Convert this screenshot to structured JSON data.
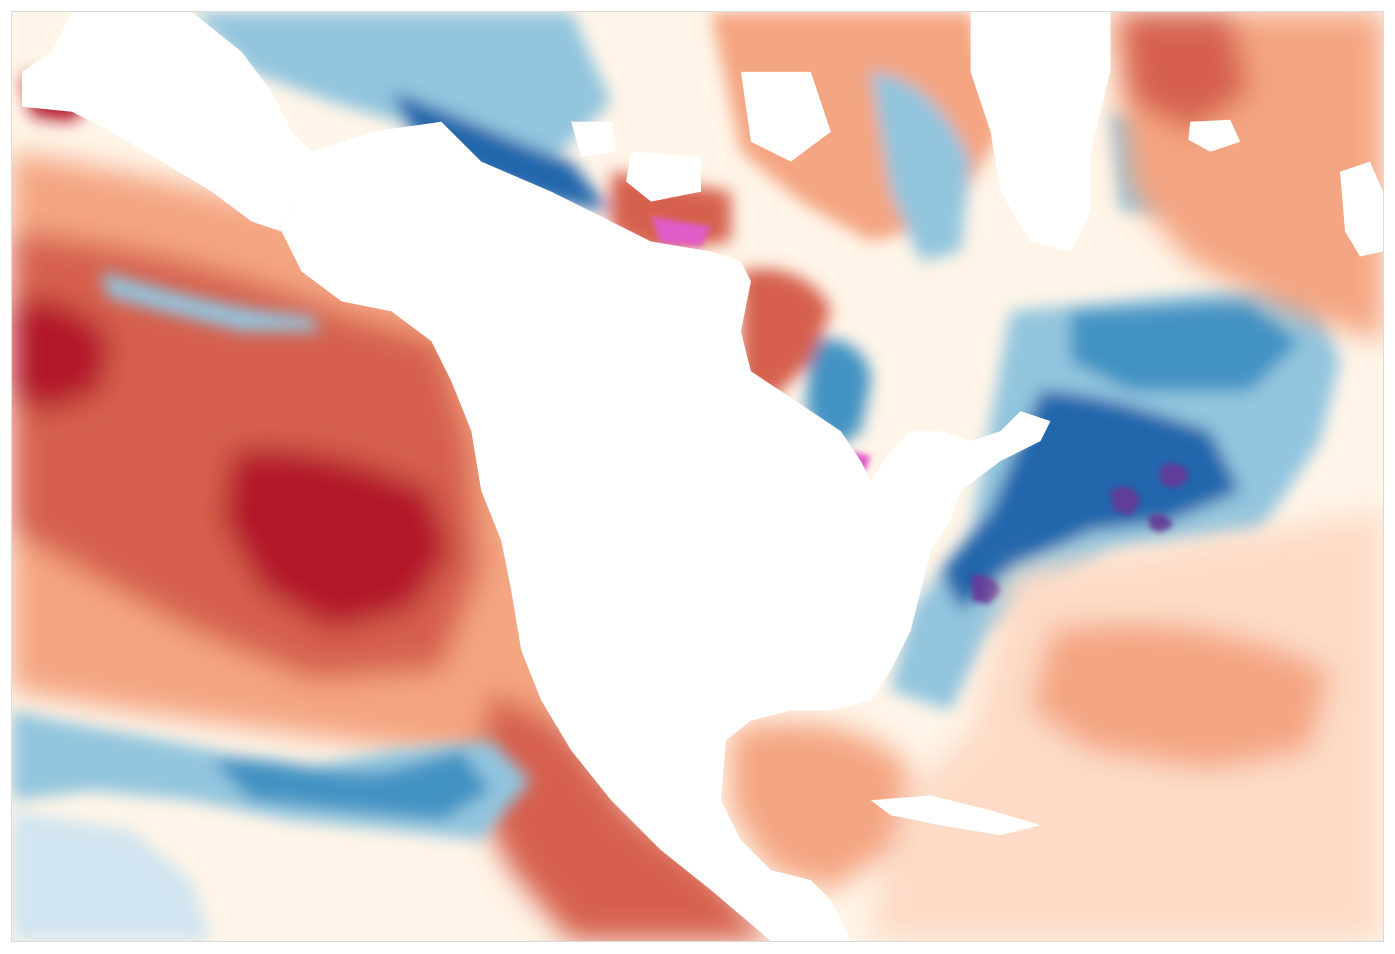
{
  "map": {
    "type": "sea-surface-temperature-anomaly",
    "region": "north-pacific-north-america-north-atlantic",
    "land_color": "#ffffff",
    "frame_color": "#d9d9d9",
    "colors": {
      "deep_warm": "#b2182b",
      "warm": "#d6604d",
      "mild_warm": "#f4a582",
      "slight_warm": "#fddbc7",
      "neutral": "#fff5e8",
      "slight_cool": "#d1e5f0",
      "cool": "#92c5de",
      "mid_cool": "#4393c3",
      "deep_cool": "#2166ac",
      "extreme_cool": "#5e3c99",
      "extreme_warm": "#e05cc8"
    },
    "features": [
      {
        "name": "north-pacific-warm-anomaly",
        "category": "warm"
      },
      {
        "name": "central-pacific-warm-core",
        "category": "deep_warm"
      },
      {
        "name": "equatorial-pacific-cool-band",
        "category": "cool"
      },
      {
        "name": "south-pacific-cool-patch",
        "category": "mid_cool"
      },
      {
        "name": "north-atlantic-cool-anomaly",
        "category": "deep_cool"
      },
      {
        "name": "gulf-stream-extreme-cool",
        "category": "extreme_cool"
      },
      {
        "name": "caribbean-warm-anomaly",
        "category": "mild_warm"
      },
      {
        "name": "tropical-atlantic-warm-anomaly",
        "category": "slight_warm"
      },
      {
        "name": "arctic-mixed-anomaly",
        "category": "cool"
      },
      {
        "name": "hudson-bay-cool-anomaly",
        "category": "mid_cool"
      },
      {
        "name": "barents-warm-anomaly",
        "category": "mild_warm"
      }
    ]
  }
}
